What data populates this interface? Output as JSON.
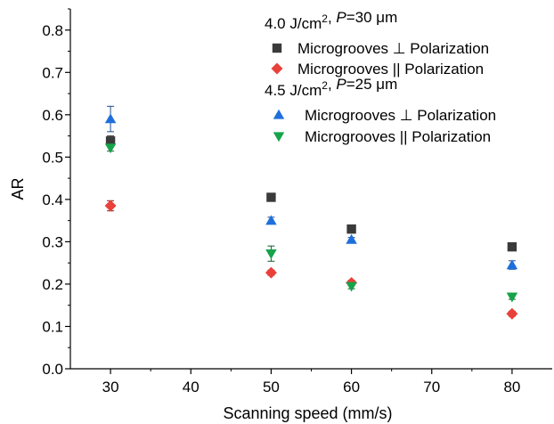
{
  "chart_data": {
    "type": "scatter",
    "title": "",
    "xlabel": "Scanning speed (mm/s)",
    "ylabel": "AR",
    "xlim": [
      25,
      85
    ],
    "ylim": [
      0.0,
      0.85
    ],
    "x_ticks": [
      30,
      40,
      50,
      60,
      70,
      80
    ],
    "y_ticks": [
      0.0,
      0.1,
      0.2,
      0.3,
      0.4,
      0.5,
      0.6,
      0.7,
      0.8
    ],
    "grid": false,
    "legend_position": "top-right",
    "legend_groups": [
      {
        "heading_value": "4.0",
        "heading_unit": "J/cm",
        "heading_sup": "2",
        "heading_sep": ", ",
        "heading_param": "P",
        "heading_rest": "=30 μm",
        "series_indices": [
          0,
          1
        ]
      },
      {
        "heading_value": "4.5",
        "heading_unit": "J/cm",
        "heading_sup": "2",
        "heading_sep": ", ",
        "heading_param": "P",
        "heading_rest": "=25 μm",
        "series_indices": [
          2,
          3
        ]
      }
    ],
    "series": [
      {
        "name": "Microgrooves ⊥  Polarization",
        "marker": "square",
        "color": "#3a3a3a",
        "error_color": "#3a3a3a",
        "x": [
          30,
          50,
          60,
          80
        ],
        "y": [
          0.538,
          0.405,
          0.33,
          0.288
        ],
        "err": [
          0.012,
          0.006,
          0.006,
          0.006
        ]
      },
      {
        "name": "Microgrooves ||  Polarization",
        "marker": "diamond",
        "color": "#e8413a",
        "error_color": "#8b1a1a",
        "x": [
          30,
          50,
          60,
          80
        ],
        "y": [
          0.385,
          0.227,
          0.203,
          0.13
        ],
        "err": [
          0.012,
          0.006,
          0.006,
          0.006
        ]
      },
      {
        "name": "Microgrooves ⊥  Polarization",
        "marker": "triangle-up",
        "color": "#1f6fdb",
        "error_color": "#1f4a8a",
        "x": [
          30,
          50,
          60,
          80
        ],
        "y": [
          0.59,
          0.35,
          0.305,
          0.245
        ],
        "err": [
          0.03,
          0.008,
          0.005,
          0.01
        ]
      },
      {
        "name": "Microgrooves ||  Polarization",
        "marker": "triangle-down",
        "color": "#16a34a",
        "error_color": "#145a2e",
        "x": [
          30,
          50,
          60,
          80
        ],
        "y": [
          0.522,
          0.272,
          0.195,
          0.17
        ],
        "err": [
          0.008,
          0.018,
          0.006,
          0.006
        ]
      }
    ]
  }
}
